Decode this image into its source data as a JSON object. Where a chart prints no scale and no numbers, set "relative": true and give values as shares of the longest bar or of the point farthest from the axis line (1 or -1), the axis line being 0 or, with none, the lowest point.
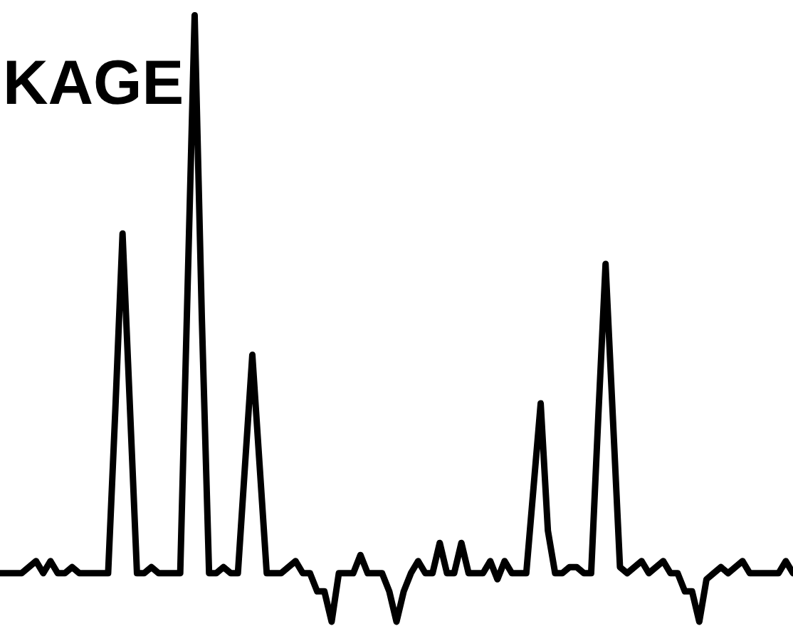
{
  "chart_data": {
    "type": "line",
    "relative": true,
    "line_style": "solid",
    "marker": "none",
    "categories": [
      null,
      null,
      null,
      null,
      null,
      null,
      null,
      null,
      null,
      null,
      null,
      null,
      null,
      null,
      null,
      null,
      null,
      null,
      null,
      null,
      null,
      null,
      null,
      null,
      null,
      null,
      null,
      null,
      null,
      null,
      null,
      null,
      null,
      null,
      null,
      null,
      null,
      null,
      null,
      null,
      null,
      null,
      null,
      null,
      null,
      null,
      null,
      null,
      null,
      null,
      null,
      null,
      null,
      null,
      null,
      null,
      null,
      null,
      null,
      null,
      null,
      null,
      null,
      null,
      null,
      null,
      null,
      null,
      null,
      null,
      null,
      null,
      null,
      null,
      null,
      null,
      null,
      null,
      null,
      null,
      null,
      null,
      null,
      null,
      null,
      null,
      null,
      null,
      null,
      null,
      null,
      null,
      null,
      null,
      null,
      null,
      null,
      null,
      null,
      null,
      null,
      null,
      null,
      null,
      null,
      null,
      null,
      null,
      null,
      null,
      null
    ],
    "series": [
      {
        "color": "#000000",
        "values": [
          0.08,
          0.08,
          0.08,
          0.08,
          0.09,
          0.1,
          0.08,
          0.1,
          0.08,
          0.08,
          0.09,
          0.08,
          0.08,
          0.08,
          0.08,
          0.08,
          0.35,
          0.64,
          0.36,
          0.08,
          0.08,
          0.09,
          0.08,
          0.08,
          0.08,
          0.08,
          0.54,
          1.0,
          0.5,
          0.08,
          0.08,
          0.09,
          0.08,
          0.08,
          0.26,
          0.44,
          0.26,
          0.08,
          0.08,
          0.08,
          0.09,
          0.1,
          0.08,
          0.08,
          0.05,
          0.05,
          0.0,
          0.08,
          0.08,
          0.08,
          0.11,
          0.08,
          0.08,
          0.08,
          0.05,
          0.0,
          0.05,
          0.08,
          0.1,
          0.08,
          0.08,
          0.13,
          0.08,
          0.08,
          0.13,
          0.08,
          0.08,
          0.08,
          0.1,
          0.07,
          0.1,
          0.08,
          0.08,
          0.08,
          0.22,
          0.36,
          0.15,
          0.08,
          0.08,
          0.09,
          0.09,
          0.08,
          0.08,
          0.34,
          0.59,
          0.34,
          0.09,
          0.08,
          0.09,
          0.1,
          0.08,
          0.09,
          0.1,
          0.08,
          0.08,
          0.05,
          0.05,
          0.0,
          0.07,
          0.08,
          0.09,
          0.08,
          0.09,
          0.1,
          0.08,
          0.08,
          0.08,
          0.08,
          0.08,
          0.1,
          0.08
        ]
      }
    ],
    "annotations": [
      "KAGE"
    ]
  }
}
